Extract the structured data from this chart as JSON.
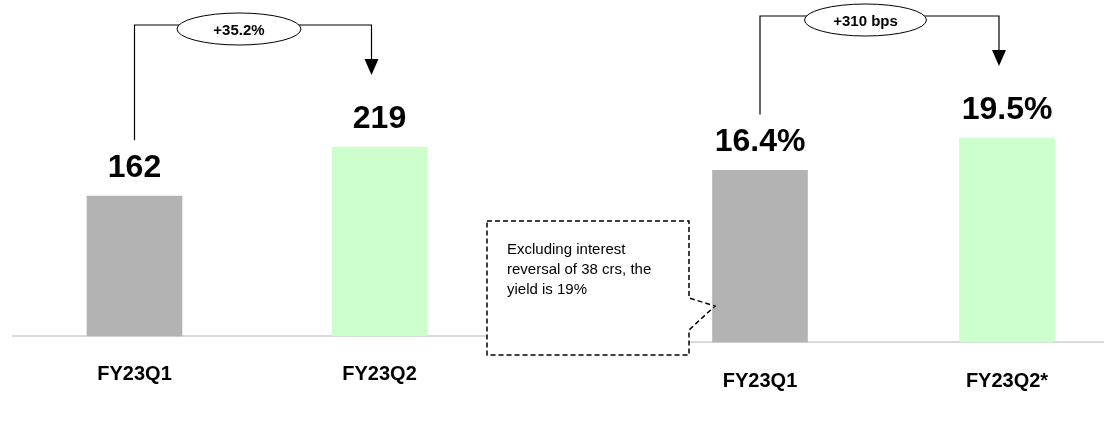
{
  "chart_data": [
    {
      "type": "bar",
      "categories": [
        "FY23Q1",
        "FY23Q2"
      ],
      "values": [
        162,
        219
      ],
      "colors": [
        "#b3b3b3",
        "#ccffcc"
      ],
      "data_labels": true,
      "annotations": [
        "+35.2%"
      ]
    },
    {
      "type": "bar",
      "categories": [
        "FY23Q1",
        "FY23Q2*"
      ],
      "values": [
        16.4,
        19.5
      ],
      "colors": [
        "#b3b3b3",
        "#ccffcc"
      ],
      "value_labels": [
        "16.4%",
        "19.5%"
      ],
      "annotations": [
        "+310 bps",
        "Excluding interest reversal of 38 crs, the yield is 19%"
      ]
    }
  ]
}
